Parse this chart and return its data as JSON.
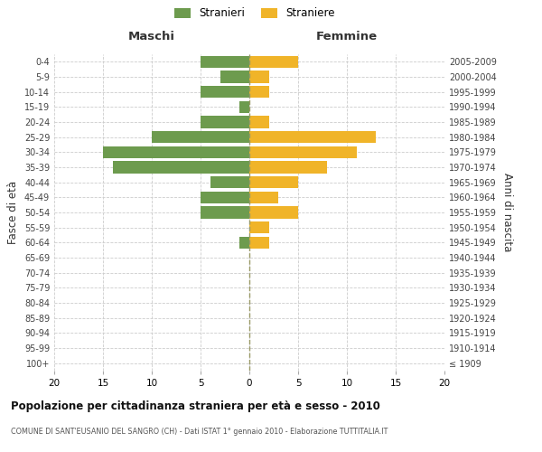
{
  "age_groups": [
    "100+",
    "95-99",
    "90-94",
    "85-89",
    "80-84",
    "75-79",
    "70-74",
    "65-69",
    "60-64",
    "55-59",
    "50-54",
    "45-49",
    "40-44",
    "35-39",
    "30-34",
    "25-29",
    "20-24",
    "15-19",
    "10-14",
    "5-9",
    "0-4"
  ],
  "birth_years": [
    "≤ 1909",
    "1910-1914",
    "1915-1919",
    "1920-1924",
    "1925-1929",
    "1930-1934",
    "1935-1939",
    "1940-1944",
    "1945-1949",
    "1950-1954",
    "1955-1959",
    "1960-1964",
    "1965-1969",
    "1970-1974",
    "1975-1979",
    "1980-1984",
    "1985-1989",
    "1990-1994",
    "1995-1999",
    "2000-2004",
    "2005-2009"
  ],
  "males": [
    0,
    0,
    0,
    0,
    0,
    0,
    0,
    0,
    1,
    0,
    5,
    5,
    4,
    14,
    15,
    10,
    5,
    1,
    5,
    3,
    5
  ],
  "females": [
    0,
    0,
    0,
    0,
    0,
    0,
    0,
    0,
    2,
    2,
    5,
    3,
    5,
    8,
    11,
    13,
    2,
    0,
    2,
    2,
    5
  ],
  "male_color": "#6d9b4e",
  "female_color": "#f0b429",
  "background_color": "#ffffff",
  "grid_color": "#cccccc",
  "title": "Popolazione per cittadinanza straniera per età e sesso - 2010",
  "subtitle": "COMUNE DI SANT'EUSANIO DEL SANGRO (CH) - Dati ISTAT 1° gennaio 2010 - Elaborazione TUTTITALIA.IT",
  "left_label": "Maschi",
  "right_label": "Femmine",
  "yleft_label": "Fasce di età",
  "yright_label": "Anni di nascita",
  "legend_male": "Stranieri",
  "legend_female": "Straniere",
  "xlim": 20,
  "bar_height": 0.8
}
